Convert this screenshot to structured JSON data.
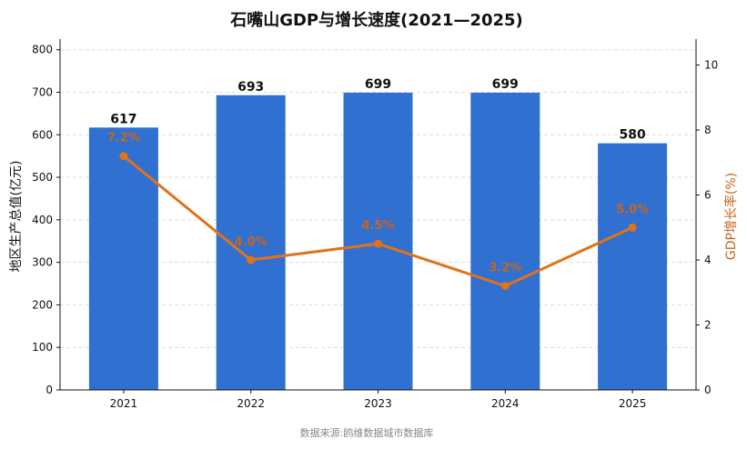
{
  "chart_data": {
    "type": "bar",
    "title": "石嘴山GDP与增长速度(2021—2025)",
    "categories": [
      "2021",
      "2022",
      "2023",
      "2024",
      "2025"
    ],
    "series": [
      {
        "values": [
          617,
          693,
          699,
          699,
          580
        ]
      },
      {
        "type": "line",
        "values": [
          7.2,
          4.0,
          4.5,
          3.2,
          5.0
        ]
      }
    ],
    "bar_labels": [
      "617",
      "693",
      "699",
      "699",
      "580"
    ],
    "line_labels": [
      "7.2%",
      "4.0%",
      "4.5%",
      "3.2%",
      "5.0%"
    ],
    "ylabel": "地区生产总值(亿元)",
    "y2label": "GDP增长率(%)",
    "ylim": [
      0,
      825
    ],
    "y2lim": [
      0,
      10.8
    ],
    "yticks": [
      0,
      100,
      200,
      300,
      400,
      500,
      600,
      700,
      800
    ],
    "y2ticks": [
      0,
      2,
      4,
      6,
      8,
      10
    ],
    "grid": true,
    "colors": {
      "bar": "#3070d0",
      "line": "#e0731a",
      "line_label": "#c8651e",
      "y2label": "#c8651e",
      "grid": "#dddddd"
    }
  },
  "source": "数据来源:鸥维数据城市数据库"
}
